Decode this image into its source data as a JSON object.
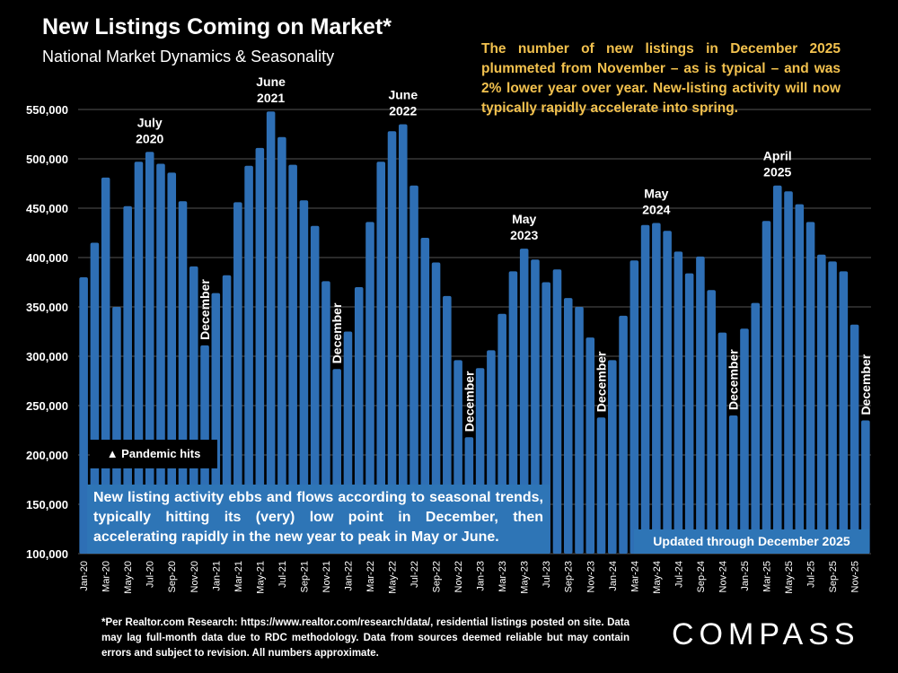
{
  "title": "New Listings Coming on Market*",
  "subtitle": "National Market Dynamics & Seasonality",
  "callout": "The number of new listings in December 2025 plummeted from November – as is typical – and was 2% lower year over year. New-listing activity will now typically rapidly accelerate into spring.",
  "pandemic_label": "▲ Pandemic hits",
  "seasonal_note": "New listing activity ebbs and flows according to seasonal trends, typically hitting its (very) low point in December, then accelerating rapidly in the new year to peak in May or June.",
  "updated_note": "Updated through December 2025",
  "footnote": "*Per Realtor.com Research: https://www.realtor.com/research/data/, residential listings posted on site. Data may lag full-month data due to RDC methodology. Data from sources deemed reliable but may contain errors and subject to revision. All numbers approximate.",
  "logo": "COMPASS",
  "colors": {
    "bar": "#2e6fb5",
    "callout": "#f2c14e",
    "background": "#000000"
  },
  "chart_data": {
    "type": "bar",
    "ylim": [
      100000,
      550000
    ],
    "yticks": [
      "100,000",
      "150,000",
      "200,000",
      "250,000",
      "300,000",
      "350,000",
      "400,000",
      "450,000",
      "500,000",
      "550,000"
    ],
    "grid": true,
    "categories": [
      "Jan-20",
      "Feb-20",
      "Mar-20",
      "Apr-20",
      "May-20",
      "Jun-20",
      "Jul-20",
      "Aug-20",
      "Sep-20",
      "Oct-20",
      "Nov-20",
      "Dec-20",
      "Jan-21",
      "Feb-21",
      "Mar-21",
      "Apr-21",
      "May-21",
      "Jun-21",
      "Jul-21",
      "Aug-21",
      "Sep-21",
      "Oct-21",
      "Nov-21",
      "Dec-21",
      "Jan-22",
      "Feb-22",
      "Mar-22",
      "Apr-22",
      "May-22",
      "Jun-22",
      "Jul-22",
      "Aug-22",
      "Sep-22",
      "Oct-22",
      "Nov-22",
      "Dec-22",
      "Jan-23",
      "Feb-23",
      "Mar-23",
      "Apr-23",
      "May-23",
      "Jun-23",
      "Jul-23",
      "Aug-23",
      "Sep-23",
      "Oct-23",
      "Nov-23",
      "Dec-23",
      "Jan-24",
      "Feb-24",
      "Mar-24",
      "Apr-24",
      "May-24",
      "Jun-24",
      "Jul-24",
      "Aug-24",
      "Sep-24",
      "Oct-24",
      "Nov-24",
      "Dec-24",
      "Jan-25",
      "Feb-25",
      "Mar-25",
      "Apr-25",
      "May-25",
      "Jun-25",
      "Jul-25",
      "Aug-25",
      "Sep-25",
      "Oct-25",
      "Nov-25",
      "Dec-25"
    ],
    "values": [
      380000,
      415000,
      481000,
      350000,
      452000,
      497000,
      507000,
      495000,
      486000,
      457000,
      391000,
      311000,
      364000,
      382000,
      456000,
      493000,
      511000,
      548000,
      522000,
      494000,
      458000,
      432000,
      376000,
      287000,
      325000,
      370000,
      436000,
      497000,
      528000,
      535000,
      473000,
      420000,
      395000,
      361000,
      296000,
      218000,
      288000,
      306000,
      343000,
      386000,
      409000,
      398000,
      375000,
      388000,
      359000,
      350000,
      319000,
      238000,
      296000,
      341000,
      397000,
      433000,
      435000,
      427000,
      406000,
      384000,
      401000,
      367000,
      324000,
      240000,
      328000,
      354000,
      437000,
      473000,
      467000,
      454000,
      436000,
      403000,
      396000,
      386000,
      332000,
      235000
    ],
    "annotations": [
      {
        "category": "Jul-20",
        "lines": [
          "July",
          "2020"
        ]
      },
      {
        "category": "Jun-21",
        "lines": [
          "June",
          "2021"
        ]
      },
      {
        "category": "Jun-22",
        "lines": [
          "June",
          "2022"
        ]
      },
      {
        "category": "May-23",
        "lines": [
          "May",
          "2023"
        ]
      },
      {
        "category": "May-24",
        "lines": [
          "May",
          "2024"
        ]
      },
      {
        "category": "Apr-25",
        "lines": [
          "April",
          "2025"
        ]
      }
    ],
    "december_label": "December"
  }
}
